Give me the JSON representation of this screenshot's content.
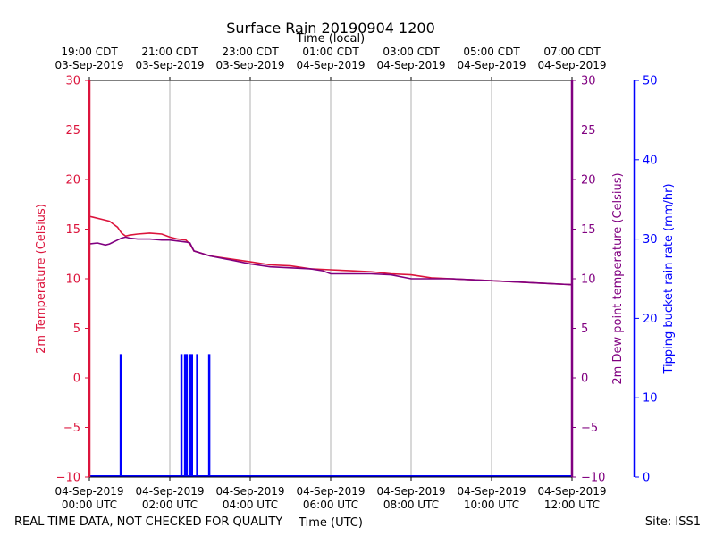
{
  "chart_data": {
    "type": "line",
    "title": "Surface Rain 20190904 1200",
    "top_xlabel": "Time (local)",
    "bottom_xlabel": "Time (UTC)",
    "footer_left": "REAL TIME DATA, NOT CHECKED FOR QUALITY",
    "footer_right": "Site: ISS1",
    "x_range_hours": [
      0,
      12
    ],
    "bottom_ticks": [
      {
        "hour": 0,
        "line1": "04-Sep-2019",
        "line2": "00:00 UTC"
      },
      {
        "hour": 2,
        "line1": "04-Sep-2019",
        "line2": "02:00 UTC"
      },
      {
        "hour": 4,
        "line1": "04-Sep-2019",
        "line2": "04:00 UTC"
      },
      {
        "hour": 6,
        "line1": "04-Sep-2019",
        "line2": "06:00 UTC"
      },
      {
        "hour": 8,
        "line1": "04-Sep-2019",
        "line2": "08:00 UTC"
      },
      {
        "hour": 10,
        "line1": "04-Sep-2019",
        "line2": "10:00 UTC"
      },
      {
        "hour": 12,
        "line1": "04-Sep-2019",
        "line2": "12:00 UTC"
      }
    ],
    "top_ticks": [
      {
        "hour": 0,
        "line1": "19:00 CDT",
        "line2": "03-Sep-2019"
      },
      {
        "hour": 2,
        "line1": "21:00 CDT",
        "line2": "03-Sep-2019"
      },
      {
        "hour": 4,
        "line1": "23:00 CDT",
        "line2": "03-Sep-2019"
      },
      {
        "hour": 6,
        "line1": "01:00 CDT",
        "line2": "04-Sep-2019"
      },
      {
        "hour": 8,
        "line1": "03:00 CDT",
        "line2": "04-Sep-2019"
      },
      {
        "hour": 10,
        "line1": "05:00 CDT",
        "line2": "04-Sep-2019"
      },
      {
        "hour": 12,
        "line1": "07:00 CDT",
        "line2": "04-Sep-2019"
      }
    ],
    "axes": {
      "left": {
        "label": "2m Temperature (Celsius)",
        "range": [
          -10,
          30
        ],
        "ticks": [
          -10,
          -5,
          0,
          5,
          10,
          15,
          20,
          25,
          30
        ],
        "tick_labels": [
          "−10",
          "−5",
          "0",
          "5",
          "10",
          "15",
          "20",
          "25",
          "30"
        ],
        "color": "#dc143c"
      },
      "right": {
        "label": "2m Dew point temperature (Celsius)",
        "range": [
          -10,
          30
        ],
        "ticks": [
          -10,
          -5,
          0,
          5,
          10,
          15,
          20,
          25,
          30
        ],
        "tick_labels": [
          "−10",
          "−5",
          "0",
          "5",
          "10",
          "15",
          "20",
          "25",
          "30"
        ],
        "color": "#800080"
      },
      "rain": {
        "label": "Tipping bucket rain rate (mm/hr)",
        "range": [
          0,
          50
        ],
        "ticks": [
          0,
          10,
          20,
          30,
          40,
          50
        ],
        "tick_labels": [
          "0",
          "10",
          "20",
          "30",
          "40",
          "50"
        ],
        "color": "#0000ff"
      }
    },
    "series": [
      {
        "name": "2m Temperature",
        "axis": "left",
        "color": "#dc143c",
        "x": [
          0,
          0.1,
          0.3,
          0.5,
          0.6,
          0.7,
          0.8,
          0.9,
          1.0,
          1.2,
          1.5,
          1.8,
          2.0,
          2.2,
          2.4,
          2.5,
          2.6,
          3.0,
          3.5,
          4.0,
          4.5,
          5.0,
          5.5,
          6.0,
          6.5,
          7.0,
          7.5,
          8.0,
          8.5,
          9.0,
          9.5,
          10.0,
          10.5,
          11.0,
          11.5,
          12.0
        ],
        "values": [
          16.3,
          16.2,
          16.0,
          15.8,
          15.5,
          15.2,
          14.6,
          14.3,
          14.4,
          14.5,
          14.6,
          14.5,
          14.2,
          14.0,
          13.9,
          13.5,
          12.8,
          12.3,
          12.0,
          11.7,
          11.4,
          11.3,
          11.0,
          10.9,
          10.8,
          10.7,
          10.5,
          10.4,
          10.1,
          10.0,
          9.9,
          9.8,
          9.7,
          9.6,
          9.5,
          9.4
        ]
      },
      {
        "name": "2m Dew point temperature",
        "axis": "right",
        "color": "#800080",
        "x": [
          0,
          0.2,
          0.4,
          0.5,
          0.6,
          0.7,
          0.8,
          0.9,
          1.0,
          1.2,
          1.5,
          1.8,
          2.0,
          2.2,
          2.4,
          2.5,
          2.6,
          3.0,
          3.5,
          4.0,
          4.5,
          5.0,
          5.5,
          5.8,
          6.0,
          6.5,
          7.0,
          7.5,
          8.0,
          8.5,
          9.0,
          9.5,
          10.0,
          10.5,
          11.0,
          11.5,
          12.0
        ],
        "values": [
          13.5,
          13.6,
          13.4,
          13.5,
          13.7,
          13.9,
          14.1,
          14.2,
          14.1,
          14.0,
          14.0,
          13.9,
          13.9,
          13.8,
          13.7,
          13.6,
          12.8,
          12.3,
          11.9,
          11.5,
          11.2,
          11.1,
          11.0,
          10.8,
          10.5,
          10.5,
          10.5,
          10.4,
          10.0,
          10.0,
          10.0,
          9.9,
          9.8,
          9.7,
          9.6,
          9.5,
          9.4
        ]
      }
    ],
    "rain_events": [
      {
        "hour": 0.78,
        "rate": 15.5
      },
      {
        "hour": 2.29,
        "rate": 15.5
      },
      {
        "hour": 2.38,
        "rate": 15.5
      },
      {
        "hour": 2.42,
        "rate": 15.5
      },
      {
        "hour": 2.5,
        "rate": 15.5
      },
      {
        "hour": 2.55,
        "rate": 15.5
      },
      {
        "hour": 2.68,
        "rate": 15.5
      },
      {
        "hour": 2.98,
        "rate": 15.5
      }
    ]
  }
}
